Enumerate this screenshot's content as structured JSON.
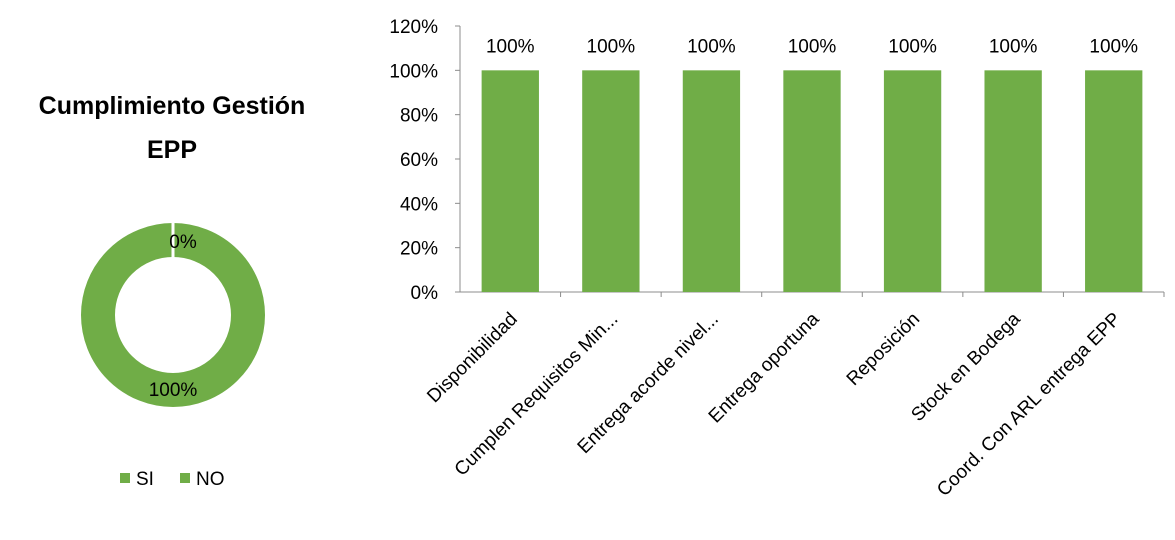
{
  "chart_data": [
    {
      "type": "pie",
      "variant": "donut",
      "title_lines": [
        "Cumplimiento Gestión",
        "EPP"
      ],
      "categories": [
        "SI",
        "NO"
      ],
      "values": [
        100,
        0
      ],
      "data_labels": [
        "100%",
        "0%"
      ],
      "legend": [
        "SI",
        "NO"
      ],
      "legend_position": "bottom",
      "colors": [
        "#70AD47",
        "#70AD47"
      ]
    },
    {
      "type": "bar",
      "categories": [
        "Disponibilidad",
        "Cumplen Requisitos Min...",
        "Entrega acorde nivel...",
        "Entrega oportuna",
        "Reposición",
        "Stock en Bodega",
        "Coord. Con ARL entrega EPP"
      ],
      "values": [
        100,
        100,
        100,
        100,
        100,
        100,
        100
      ],
      "data_labels": [
        "100%",
        "100%",
        "100%",
        "100%",
        "100%",
        "100%",
        "100%"
      ],
      "yticks": [
        "0%",
        "20%",
        "40%",
        "60%",
        "80%",
        "100%",
        "120%"
      ],
      "ylim": [
        0,
        120
      ],
      "grid": false,
      "color": "#70AD47"
    }
  ]
}
